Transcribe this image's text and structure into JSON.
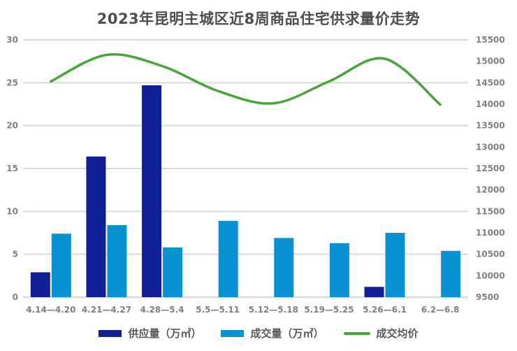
{
  "colors": {
    "supply_bar": "#101F96",
    "transaction_bar": "#0991D1",
    "price_line": "#4AA43C",
    "grid": "#D9D9D9",
    "axis_text": "#7F7F7F",
    "title_text": "#4D4D4D",
    "legend_text": "#595959",
    "background": "#FFFFFF"
  },
  "chart_data": {
    "type": "combo-bar-line",
    "title": "2023年昆明主城区近8周商品住宅供求量价走势",
    "categories": [
      "4.14—4.20",
      "4.21—4.27",
      "4.28—5.4",
      "5.5—5.11",
      "5.12—5.18",
      "5.19—5.25",
      "5.26—6.1",
      "6.2—6.8"
    ],
    "series": [
      {
        "name": "供应量（万㎡）",
        "type": "bar",
        "axis": "left",
        "color": "#101F96",
        "values": [
          2.9,
          16.4,
          24.7,
          0,
          0,
          0,
          1.2,
          0
        ]
      },
      {
        "name": "成交量（万㎡）",
        "type": "bar",
        "axis": "left",
        "color": "#0991D1",
        "values": [
          7.4,
          8.4,
          5.8,
          8.9,
          6.9,
          6.3,
          7.5,
          5.4
        ]
      },
      {
        "name": "成交均价",
        "type": "line",
        "axis": "right",
        "color": "#4AA43C",
        "smooth": true,
        "values": [
          14530,
          15150,
          14890,
          14310,
          14020,
          14530,
          15060,
          13990
        ]
      }
    ],
    "left_axis": {
      "min": 0,
      "max": 30,
      "step": 5,
      "ticks": [
        0,
        5,
        10,
        15,
        20,
        25,
        30
      ]
    },
    "right_axis": {
      "min": 9500,
      "max": 15500,
      "step": 500,
      "ticks": [
        9500,
        10000,
        10500,
        11000,
        11500,
        12000,
        12500,
        13000,
        13500,
        14000,
        14500,
        15000,
        15500
      ]
    },
    "grid": true,
    "legend_position": "bottom"
  }
}
